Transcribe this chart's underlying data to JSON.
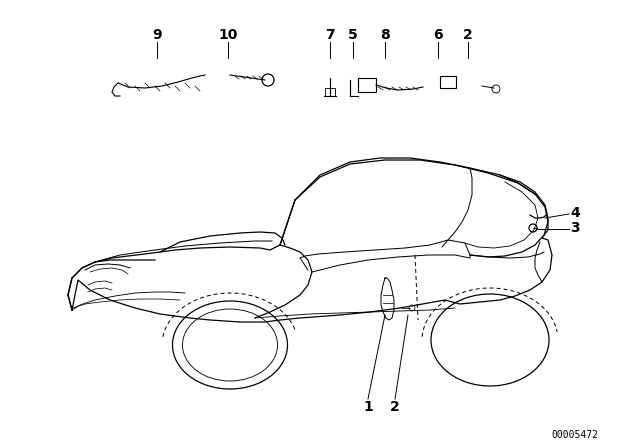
{
  "background_color": "#ffffff",
  "diagram_number": "00005472",
  "line_color": "#000000",
  "text_color": "#000000",
  "font_size_labels": 10,
  "font_size_diagram_num": 7
}
